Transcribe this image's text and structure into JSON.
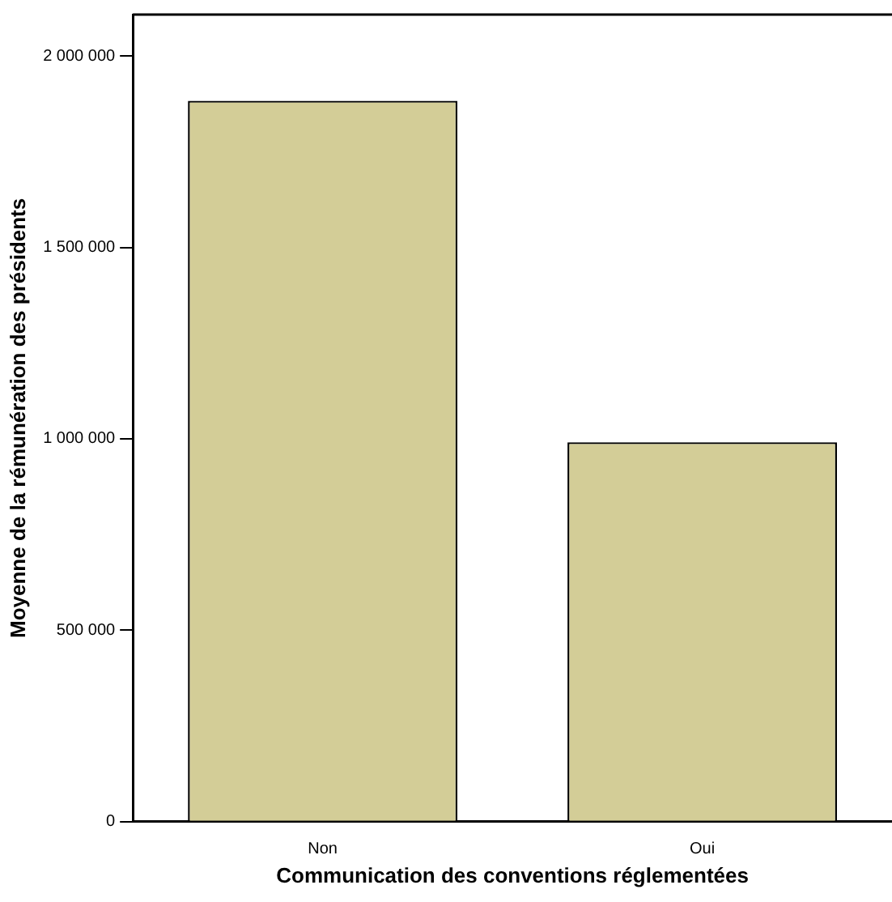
{
  "chart_data": {
    "type": "bar",
    "xlabel": "Communication des conventions réglementées",
    "ylabel": "Moyenne de la rémunération des présidents",
    "categories": [
      "Non",
      "Oui"
    ],
    "values": [
      1883000,
      991000
    ],
    "color": "#d3cd97",
    "ylim": [
      0,
      2108000
    ],
    "yticks": [
      {
        "value": 0,
        "label": "0"
      },
      {
        "value": 500000,
        "label": "500 000"
      },
      {
        "value": 1000000,
        "label": "1 000 000"
      },
      {
        "value": 1500000,
        "label": "1 500 000"
      },
      {
        "value": 2000000,
        "label": "2 000 000"
      }
    ],
    "grid": false
  }
}
